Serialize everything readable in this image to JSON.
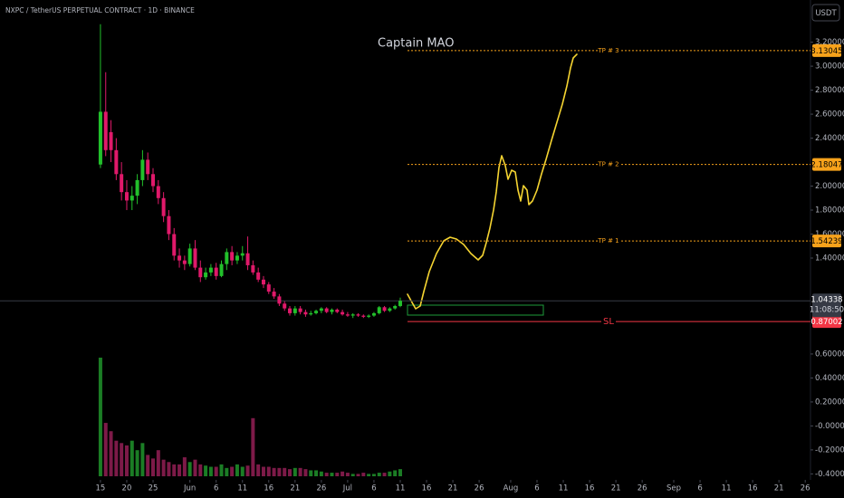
{
  "header": {
    "symbol_title": "NXPC / TetherUS PERPETUAL CONTRACT · 1D · BINANCE",
    "currency": "USDT",
    "author": "Captain MAO"
  },
  "chart_data": {
    "type": "candlestick",
    "x": [
      135,
      136,
      137,
      138,
      139,
      140,
      141,
      142,
      143,
      144,
      145,
      146,
      147,
      148,
      149,
      150,
      151,
      152,
      153,
      154,
      155,
      156,
      157,
      158,
      159,
      160,
      161,
      162,
      163,
      164,
      165,
      166,
      167,
      168,
      169,
      170,
      171,
      172,
      173,
      174,
      175,
      176,
      177,
      178,
      179,
      180,
      181,
      182,
      183,
      184,
      185,
      186,
      187,
      188,
      189,
      190,
      191,
      192
    ],
    "open": [
      2.18,
      2.62,
      2.45,
      2.3,
      2.1,
      1.95,
      1.88,
      1.92,
      2.05,
      2.22,
      2.1,
      2.0,
      1.9,
      1.75,
      1.6,
      1.42,
      1.38,
      1.35,
      1.48,
      1.32,
      1.24,
      1.28,
      1.32,
      1.25,
      1.35,
      1.45,
      1.38,
      1.42,
      1.44,
      1.34,
      1.28,
      1.22,
      1.18,
      1.12,
      1.08,
      1.02,
      0.98,
      0.94,
      0.98,
      0.95,
      0.93,
      0.94,
      0.96,
      0.98,
      0.95,
      0.97,
      0.95,
      0.93,
      0.92,
      0.93,
      0.92,
      0.91,
      0.92,
      0.94,
      0.99,
      0.96,
      0.98,
      1.0
    ],
    "high": [
      3.35,
      2.95,
      2.55,
      2.4,
      2.2,
      2.05,
      2.0,
      2.1,
      2.3,
      2.28,
      2.15,
      2.05,
      1.95,
      1.8,
      1.65,
      1.48,
      1.42,
      1.52,
      1.55,
      1.38,
      1.32,
      1.35,
      1.36,
      1.38,
      1.48,
      1.5,
      1.45,
      1.5,
      1.58,
      1.38,
      1.32,
      1.25,
      1.2,
      1.15,
      1.1,
      1.04,
      1.0,
      1.0,
      1.0,
      0.97,
      0.96,
      0.97,
      0.99,
      0.99,
      0.98,
      0.98,
      0.97,
      0.95,
      0.94,
      0.94,
      0.93,
      0.93,
      0.95,
      1.0,
      1.0,
      0.99,
      1.01,
      1.07
    ],
    "low": [
      2.15,
      2.25,
      2.2,
      2.05,
      1.88,
      1.8,
      1.8,
      1.85,
      2.0,
      2.05,
      1.95,
      1.85,
      1.7,
      1.55,
      1.38,
      1.32,
      1.3,
      1.33,
      1.3,
      1.2,
      1.22,
      1.25,
      1.22,
      1.24,
      1.3,
      1.34,
      1.35,
      1.38,
      1.3,
      1.26,
      1.2,
      1.15,
      1.1,
      1.06,
      1.0,
      0.96,
      0.92,
      0.92,
      0.93,
      0.91,
      0.92,
      0.93,
      0.94,
      0.94,
      0.93,
      0.94,
      0.92,
      0.91,
      0.9,
      0.91,
      0.9,
      0.9,
      0.91,
      0.93,
      0.95,
      0.95,
      0.97,
      0.99
    ],
    "close": [
      2.62,
      2.3,
      2.3,
      2.1,
      1.95,
      1.88,
      1.92,
      2.05,
      2.22,
      2.1,
      2.0,
      1.9,
      1.75,
      1.6,
      1.42,
      1.38,
      1.35,
      1.48,
      1.32,
      1.24,
      1.28,
      1.32,
      1.25,
      1.35,
      1.45,
      1.38,
      1.42,
      1.44,
      1.34,
      1.28,
      1.22,
      1.18,
      1.12,
      1.08,
      1.02,
      0.98,
      0.94,
      0.98,
      0.95,
      0.93,
      0.94,
      0.96,
      0.98,
      0.95,
      0.97,
      0.95,
      0.93,
      0.92,
      0.93,
      0.92,
      0.91,
      0.92,
      0.94,
      0.99,
      0.96,
      0.98,
      1.0,
      1.04338
    ],
    "volume": [
      100,
      45,
      38,
      30,
      28,
      26,
      30,
      22,
      28,
      18,
      15,
      22,
      14,
      12,
      10,
      10,
      16,
      12,
      14,
      10,
      9,
      8,
      8,
      10,
      7,
      8,
      10,
      8,
      9,
      49,
      10,
      8,
      8,
      7,
      7,
      7,
      6,
      7,
      7,
      6,
      5,
      5,
      4,
      3,
      3,
      3,
      4,
      3,
      2,
      2,
      3,
      2,
      2,
      3,
      3,
      4,
      5,
      6
    ],
    "volume_lim": [
      0,
      100
    ],
    "up_color": "#22c02b",
    "down_color": "#e0196a",
    "volume_up_color": "#1b7d25",
    "volume_down_color": "#7d1a48",
    "xlim": [
      115.9,
      270
    ],
    "ylim": [
      -0.45,
      3.25
    ],
    "xticks": [
      {
        "value": 135,
        "label": "15"
      },
      {
        "value": 140,
        "label": "20"
      },
      {
        "value": 145,
        "label": "25"
      },
      {
        "value": 152,
        "label": "Jun"
      },
      {
        "value": 157,
        "label": "6"
      },
      {
        "value": 162,
        "label": "11"
      },
      {
        "value": 167,
        "label": "16"
      },
      {
        "value": 172,
        "label": "21"
      },
      {
        "value": 177,
        "label": "26"
      },
      {
        "value": 182,
        "label": "Jul"
      },
      {
        "value": 187,
        "label": "6"
      },
      {
        "value": 192,
        "label": "11"
      },
      {
        "value": 197,
        "label": "16"
      },
      {
        "value": 202,
        "label": "21"
      },
      {
        "value": 207,
        "label": "26"
      },
      {
        "value": 213,
        "label": "Aug"
      },
      {
        "value": 218,
        "label": "6"
      },
      {
        "value": 223,
        "label": "11"
      },
      {
        "value": 228,
        "label": "16"
      },
      {
        "value": 233,
        "label": "21"
      },
      {
        "value": 238,
        "label": "26"
      },
      {
        "value": 244,
        "label": "Sep"
      },
      {
        "value": 249,
        "label": "6"
      },
      {
        "value": 254,
        "label": "11"
      },
      {
        "value": 259,
        "label": "16"
      },
      {
        "value": 264,
        "label": "21"
      },
      {
        "value": 269,
        "label": "26"
      }
    ],
    "yticks": [
      {
        "value": 3.2,
        "label": "3.20000"
      },
      {
        "value": 3,
        "label": "3.00000"
      },
      {
        "value": 2.8,
        "label": "2.80000"
      },
      {
        "value": 2.6,
        "label": "2.60000"
      },
      {
        "value": 2.4,
        "label": "2.40000"
      },
      {
        "value": 2,
        "label": "2.00000"
      },
      {
        "value": 1.8,
        "label": "1.80000"
      },
      {
        "value": 1.6,
        "label": "1.60000"
      },
      {
        "value": 1.4,
        "label": "1.40000"
      },
      {
        "value": 0.6,
        "label": "0.60000"
      },
      {
        "value": 0.4,
        "label": "0.40000"
      },
      {
        "value": 0.2,
        "label": "0.20000"
      },
      {
        "value": 0,
        "label": "-0.00000"
      },
      {
        "value": -0.2,
        "label": "-0.20000"
      },
      {
        "value": -0.4,
        "label": "-0.40000"
      }
    ],
    "levels": [
      {
        "label": "TP # 3",
        "value": 3.13045,
        "color": "#f7a21b",
        "style": "dashed"
      },
      {
        "label": "TP # 2",
        "value": 2.18047,
        "color": "#f7a21b",
        "style": "dashed"
      },
      {
        "label": "TP # 1",
        "value": 1.54239,
        "color": "#f7a21b",
        "style": "dashed"
      },
      {
        "label": "SL",
        "value": 0.87002,
        "color": "#f23645",
        "style": "solid"
      }
    ],
    "last_price": {
      "value": 1.04338,
      "countdown": "11:08:50",
      "color": "#363a45"
    }
  }
}
